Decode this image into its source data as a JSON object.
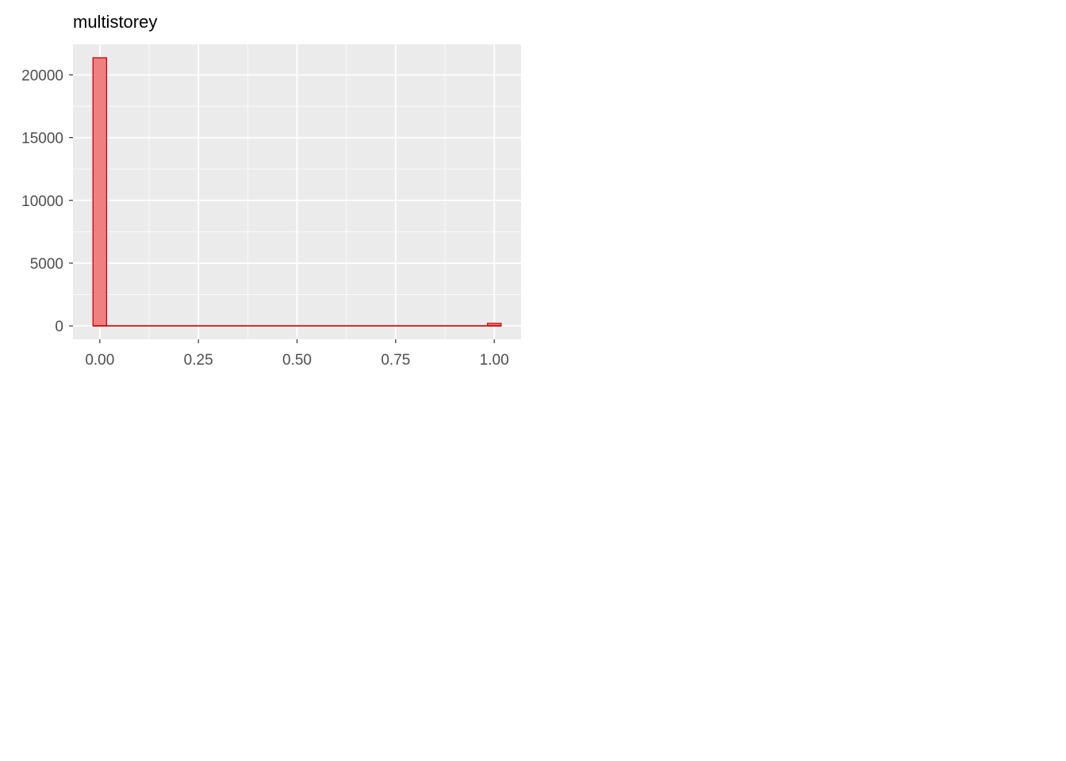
{
  "chart_data": {
    "type": "bar",
    "title": "multistorey",
    "xlabel": "",
    "ylabel": "",
    "x_range": [
      -0.068,
      1.068
    ],
    "ylim": [
      -1068,
      22430
    ],
    "x_ticks": [
      0,
      0.25,
      0.5,
      0.75,
      1
    ],
    "x_tick_labels": [
      "0.00",
      "0.25",
      "0.50",
      "0.75",
      "1.00"
    ],
    "y_ticks": [
      0,
      5000,
      10000,
      15000,
      20000
    ],
    "y_tick_labels": [
      "0",
      "5000",
      "10000",
      "15000",
      "20000"
    ],
    "bin_width": 0.0345,
    "bin_centers": [
      0,
      1
    ],
    "values": [
      21360,
      200
    ],
    "grid": true,
    "legend": "none",
    "colors": {
      "panel_background": "#ebebeb",
      "grid_line": "#ffffff",
      "bar_fill": "#f08080",
      "bar_outline": "#cc0000",
      "title_text": "#000000",
      "tick_text": "#4d4d4d",
      "tick_mark": "#333333"
    }
  }
}
